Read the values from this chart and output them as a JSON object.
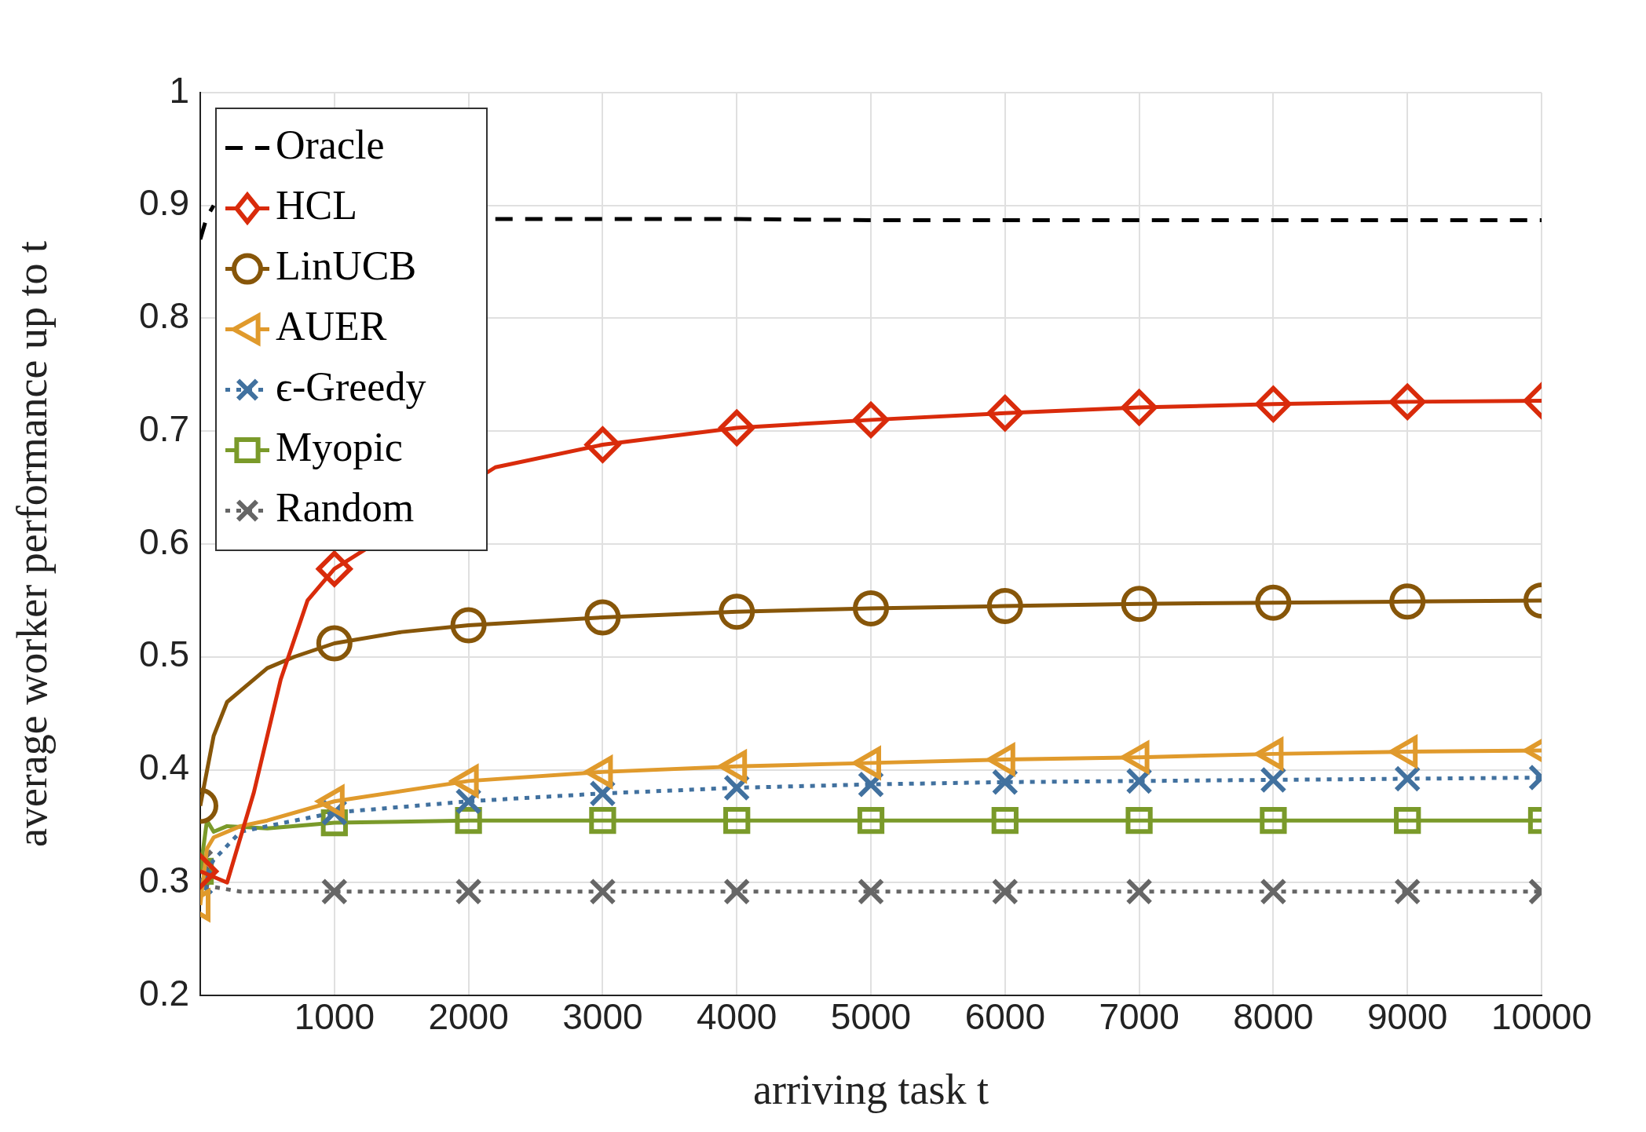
{
  "chart_data": {
    "type": "line",
    "xlabel": "arriving task t",
    "ylabel": "average worker performance up to t",
    "xlim": [
      0,
      10000
    ],
    "xticks": [
      1000,
      2000,
      3000,
      4000,
      5000,
      6000,
      7000,
      8000,
      9000,
      10000
    ],
    "ylim": [
      0.2,
      1
    ],
    "yticks": [
      0.2,
      0.3,
      0.4,
      0.5,
      0.6,
      0.7,
      0.8,
      0.9,
      1
    ],
    "grid": true,
    "legend": "top left",
    "series": [
      {
        "name": "Oracle",
        "color": "#000000",
        "marker": "none",
        "line_style": "dashed",
        "x": [
          0,
          50,
          100,
          500,
          2200,
          3000,
          4000,
          5000,
          6000,
          7000,
          8000,
          9000,
          10000
        ],
        "values": [
          0.87,
          0.89,
          0.9,
          null,
          0.888,
          0.888,
          0.888,
          0.887,
          0.887,
          0.887,
          0.887,
          0.887,
          0.887
        ]
      },
      {
        "name": "HCL",
        "color": "#d92b0b",
        "marker": "diamond",
        "line_style": "solid",
        "x": [
          0,
          200,
          400,
          600,
          800,
          1000,
          2200,
          3000,
          4000,
          5000,
          6000,
          7000,
          8000,
          9000,
          10000
        ],
        "values": [
          0.31,
          0.3,
          0.38,
          0.48,
          0.55,
          0.578,
          0.668,
          0.688,
          0.703,
          0.71,
          0.716,
          0.721,
          0.724,
          0.726,
          0.727
        ]
      },
      {
        "name": "LinUCB",
        "color": "#875609",
        "marker": "circle",
        "line_style": "solid",
        "x": [
          0,
          100,
          200,
          300,
          500,
          700,
          1000,
          1500,
          2000,
          3000,
          4000,
          5000,
          6000,
          7000,
          8000,
          9000,
          10000
        ],
        "values": [
          0.368,
          0.43,
          0.46,
          0.47,
          0.49,
          0.5,
          0.512,
          0.522,
          0.528,
          0.535,
          0.54,
          0.543,
          0.545,
          0.547,
          0.548,
          0.549,
          0.55
        ]
      },
      {
        "name": "AUER",
        "color": "#e09a2c",
        "marker": "triangle",
        "line_style": "solid",
        "x": [
          0,
          50,
          100,
          300,
          500,
          1000,
          2000,
          3000,
          4000,
          5000,
          6000,
          7000,
          8000,
          9000,
          10000
        ],
        "values": [
          0.28,
          0.33,
          0.34,
          0.35,
          0.355,
          0.372,
          0.39,
          0.398,
          0.403,
          0.406,
          0.409,
          0.411,
          0.414,
          0.416,
          0.417
        ]
      },
      {
        "name": "ϵ-Greedy",
        "color": "#41719f",
        "marker": "cross",
        "line_style": "dotted",
        "x": [
          0,
          100,
          300,
          500,
          1000,
          2000,
          3000,
          4000,
          5000,
          6000,
          7000,
          8000,
          9000,
          10000
        ],
        "values": [
          0.3,
          0.32,
          0.345,
          0.35,
          0.362,
          0.372,
          0.379,
          0.384,
          0.387,
          0.389,
          0.39,
          0.391,
          0.392,
          0.393
        ]
      },
      {
        "name": "Myopic",
        "color": "#7a9a2a",
        "marker": "square",
        "line_style": "solid",
        "x": [
          0,
          50,
          100,
          200,
          500,
          1000,
          2000,
          3000,
          4000,
          5000,
          6000,
          7000,
          8000,
          9000,
          10000
        ],
        "values": [
          0.31,
          0.355,
          0.345,
          0.35,
          0.348,
          0.353,
          0.355,
          0.355,
          0.355,
          0.355,
          0.355,
          0.355,
          0.355,
          0.355,
          0.355
        ]
      },
      {
        "name": "Random",
        "color": "#666666",
        "marker": "cross",
        "line_style": "dotted",
        "x": [
          0,
          50,
          300,
          1000,
          2000,
          3000,
          4000,
          5000,
          6000,
          7000,
          8000,
          9000,
          10000
        ],
        "values": [
          0.318,
          0.297,
          0.292,
          0.292,
          0.292,
          0.292,
          0.292,
          0.292,
          0.292,
          0.292,
          0.292,
          0.292,
          0.292
        ]
      }
    ]
  }
}
